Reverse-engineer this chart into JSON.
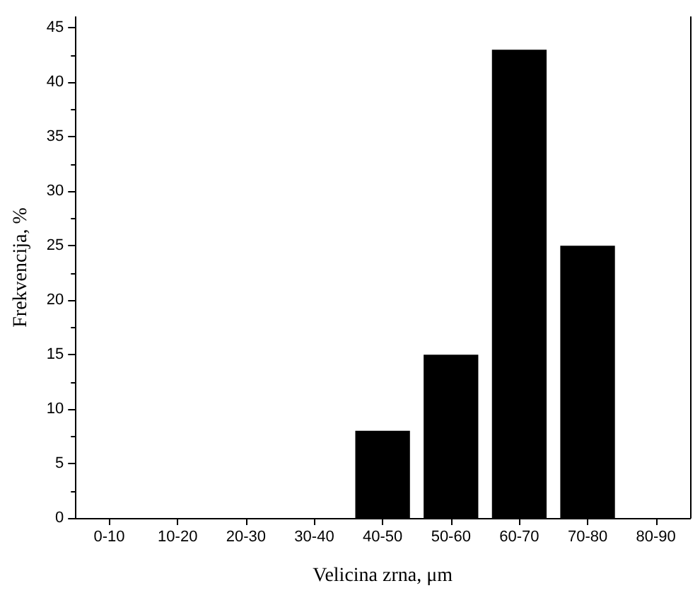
{
  "chart_data": {
    "type": "bar",
    "xlabel": "Velicina zrna, μm",
    "ylabel": "Frekvencija, %",
    "categories": [
      "0-10",
      "10-20",
      "20-30",
      "30-40",
      "40-50",
      "50-60",
      "60-70",
      "70-80",
      "80-90"
    ],
    "values": [
      0,
      0,
      0,
      0,
      8,
      15,
      43,
      25,
      0
    ],
    "color": "#000000",
    "ylim": [
      0,
      46
    ],
    "yticks": [
      0,
      5,
      10,
      15,
      20,
      25,
      30,
      35,
      40,
      45
    ]
  }
}
